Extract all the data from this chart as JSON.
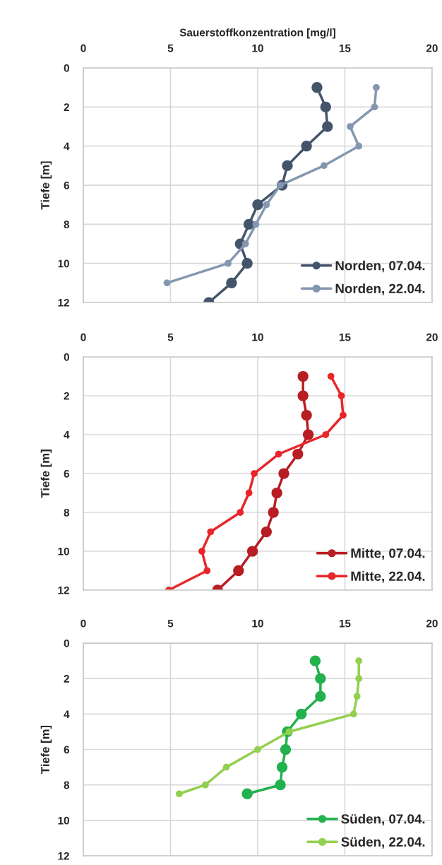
{
  "chart_data": [
    {
      "type": "line",
      "xlabel": "Sauerstoffkonzentration [mg/l]",
      "ylabel": "Tiefe [m]",
      "xlim": [
        0,
        20
      ],
      "xticks": [
        0,
        5,
        10,
        15,
        20
      ],
      "ylim": [
        12,
        0
      ],
      "yticks": [
        0,
        2,
        4,
        6,
        8,
        10,
        12
      ],
      "grid": true,
      "legend": "bottom right",
      "marker": "circle",
      "line_style": "solid",
      "series": [
        {
          "name": "Norden, 07.04.",
          "color": "#44546a",
          "x": [
            13.4,
            13.9,
            14.0,
            12.8,
            11.7,
            11.4,
            10.0,
            9.5,
            9.0,
            9.4,
            8.5,
            7.2
          ],
          "values": [
            1,
            2,
            3,
            4,
            5,
            6,
            7,
            8,
            9,
            10,
            11,
            12
          ]
        },
        {
          "name": "Norden, 22.04.",
          "color": "#8497b0",
          "x": [
            16.8,
            16.7,
            15.3,
            15.8,
            13.8,
            11.3,
            10.5,
            9.9,
            9.3,
            8.3,
            4.8
          ],
          "values": [
            1,
            2,
            3,
            4,
            5,
            6,
            7,
            8,
            9,
            10,
            11
          ]
        }
      ]
    },
    {
      "type": "line",
      "ylabel": "Tiefe [m]",
      "xlim": [
        0,
        20
      ],
      "xticks": [
        0,
        5,
        10,
        15,
        20
      ],
      "ylim": [
        12,
        0
      ],
      "yticks": [
        0,
        2,
        4,
        6,
        8,
        10,
        12
      ],
      "grid": true,
      "legend": "bottom right",
      "marker": "circle",
      "line_style": "solid",
      "series": [
        {
          "name": "Mitte, 07.04.",
          "color": "#b81d24",
          "x": [
            12.6,
            12.6,
            12.8,
            12.9,
            12.3,
            11.5,
            11.1,
            10.9,
            10.5,
            9.7,
            8.9,
            7.7
          ],
          "values": [
            1,
            2,
            3,
            4,
            5,
            6,
            7,
            8,
            9,
            10,
            11,
            12
          ]
        },
        {
          "name": "Mitte, 22.04.",
          "color": "#e8262b",
          "x": [
            14.2,
            14.8,
            14.9,
            13.9,
            11.2,
            9.8,
            9.5,
            9.0,
            7.3,
            6.8,
            7.1,
            4.9
          ],
          "values": [
            1,
            2,
            3,
            4,
            5,
            6,
            7,
            8,
            9,
            10,
            11,
            12
          ]
        }
      ]
    },
    {
      "type": "line",
      "ylabel": "Tiefe [m]",
      "xlim": [
        0,
        20
      ],
      "xticks": [
        0,
        5,
        10,
        15,
        20
      ],
      "ylim": [
        12,
        0
      ],
      "yticks": [
        0,
        2,
        4,
        6,
        8,
        10,
        12
      ],
      "grid": true,
      "legend": "bottom right",
      "marker": "circle",
      "line_style": "solid",
      "series": [
        {
          "name": "Süden, 07.04.",
          "color": "#22b14c",
          "x": [
            13.3,
            13.6,
            13.6,
            12.5,
            11.7,
            11.6,
            11.4,
            11.3,
            9.4
          ],
          "values": [
            1,
            2,
            3,
            4,
            5,
            6,
            7,
            8,
            8.5
          ]
        },
        {
          "name": "Süden, 22.04.",
          "color": "#92d050",
          "x": [
            15.8,
            15.8,
            15.7,
            15.5,
            11.8,
            10.0,
            8.2,
            7.0,
            5.5
          ],
          "values": [
            1,
            2,
            3,
            4,
            5,
            6,
            7,
            8,
            8.5
          ]
        }
      ]
    }
  ]
}
